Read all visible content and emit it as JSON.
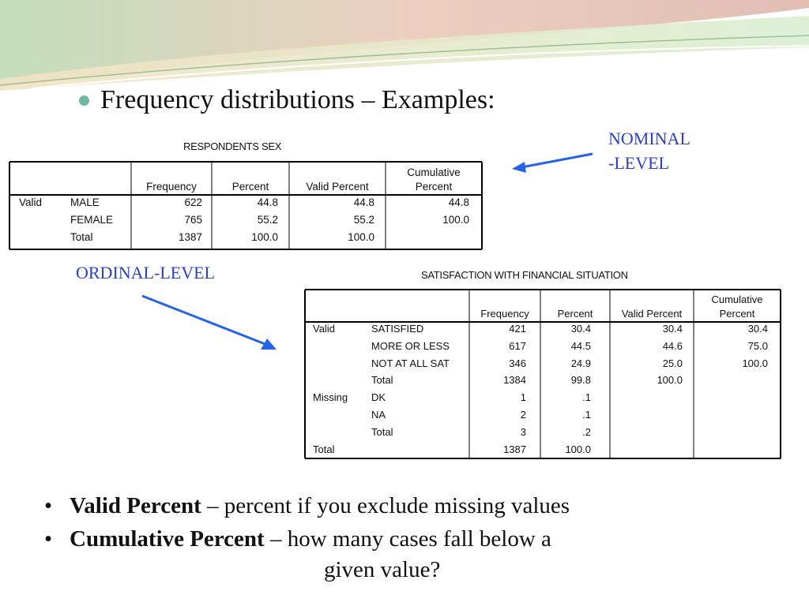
{
  "heading": "Frequency distributions – Examples:",
  "tags": {
    "nominal_line1": "NOMINAL",
    "nominal_line2": "-LEVEL",
    "ordinal": "ORDINAL-LEVEL"
  },
  "colors": {
    "accent_blue": "#2b3fc7",
    "bullet_teal": "#6fb7a8"
  },
  "table1": {
    "title": "RESPONDENTS SEX",
    "headers": [
      "Frequency",
      "Percent",
      "Valid Percent",
      "Cumulative",
      "Percent"
    ],
    "rows": [
      [
        "Valid",
        "MALE",
        "622",
        "44.8",
        "44.8",
        "44.8"
      ],
      [
        "",
        "FEMALE",
        "765",
        "55.2",
        "55.2",
        "100.0"
      ],
      [
        "",
        "Total",
        "1387",
        "100.0",
        "100.0",
        ""
      ]
    ]
  },
  "table2": {
    "title": "SATISFACTION WITH FINANCIAL SITUATION",
    "headers": [
      "Frequency",
      "Percent",
      "Valid Percent",
      "Cumulative",
      "Percent"
    ],
    "rows": [
      [
        "Valid",
        "SATISFIED",
        "421",
        "30.4",
        "30.4",
        "30.4"
      ],
      [
        "",
        "MORE OR LESS",
        "617",
        "44.5",
        "44.6",
        "75.0"
      ],
      [
        "",
        "NOT AT ALL SAT",
        "346",
        "24.9",
        "25.0",
        "100.0"
      ],
      [
        "",
        "Total",
        "1384",
        "99.8",
        "100.0",
        ""
      ],
      [
        "Missing",
        "DK",
        "1",
        ".1",
        "",
        ""
      ],
      [
        "",
        "NA",
        "2",
        ".1",
        "",
        ""
      ],
      [
        "",
        "Total",
        "3",
        ".2",
        "",
        ""
      ],
      [
        "Total",
        "",
        "1387",
        "100.0",
        "",
        ""
      ]
    ]
  },
  "bullets": [
    {
      "term": "Valid Percent",
      "text": " – percent if you exclude missing values"
    },
    {
      "term": "Cumulative Percent",
      "text": " – how many cases fall below a"
    }
  ],
  "bullet_continuation": "given value?"
}
